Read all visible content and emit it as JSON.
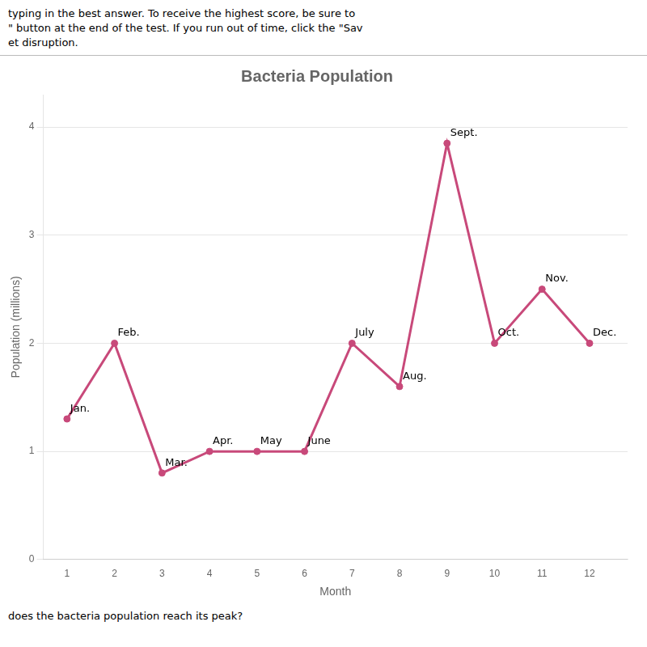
{
  "chart_data": {
    "type": "line",
    "title": "Bacteria Population",
    "xlabel": "Month",
    "ylabel": "Population (millions)",
    "x": [
      1,
      2,
      3,
      4,
      5,
      6,
      7,
      8,
      9,
      10,
      11,
      12
    ],
    "values": [
      1.3,
      2.0,
      0.8,
      1.0,
      1.0,
      1.0,
      2.0,
      1.6,
      3.85,
      2.0,
      2.5,
      2.0
    ],
    "color": "#c8497a",
    "marker": "circle",
    "xlim": [
      0.5,
      12.8
    ],
    "xticks": [
      1,
      2,
      3,
      4,
      5,
      6,
      7,
      8,
      9,
      10,
      11,
      12
    ],
    "ylim": [
      0,
      4.3
    ],
    "yticks": [
      0,
      1,
      2,
      3,
      4
    ],
    "grid": "y",
    "annotations": [
      {
        "text": "Jan.",
        "x": 1,
        "y": 1.3
      },
      {
        "text": "Feb.",
        "x": 2,
        "y": 2.0
      },
      {
        "text": "Mar.",
        "x": 3,
        "y": 0.8
      },
      {
        "text": "Apr.",
        "x": 4,
        "y": 1.0
      },
      {
        "text": "May",
        "x": 5,
        "y": 1.0
      },
      {
        "text": "June",
        "x": 6,
        "y": 1.0
      },
      {
        "text": "July",
        "x": 7,
        "y": 2.0
      },
      {
        "text": "Aug.",
        "x": 8,
        "y": 1.6
      },
      {
        "text": "Sept.",
        "x": 9,
        "y": 3.85
      },
      {
        "text": "Oct.",
        "x": 10,
        "y": 2.0
      },
      {
        "text": "Nov.",
        "x": 11,
        "y": 2.5
      },
      {
        "text": "Dec.",
        "x": 12,
        "y": 2.0
      }
    ],
    "header": [
      "typing in the best answer. To receive the highest score, be sure to",
      "\" button at the end of the test. If you run out of time, click the \"Sav",
      "et disruption."
    ],
    "footer": "does the bacteria population reach its peak?"
  }
}
